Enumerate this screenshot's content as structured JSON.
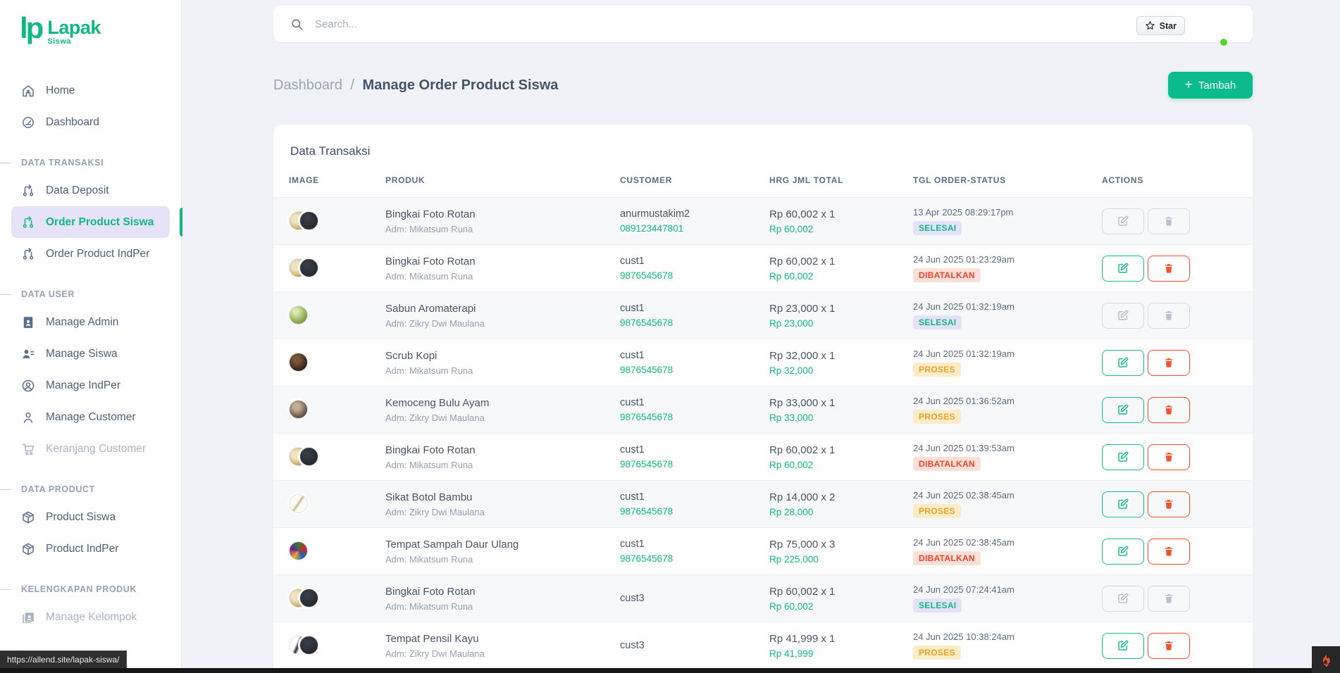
{
  "app": {
    "name": "Lapak",
    "sub": "Siswa"
  },
  "theme": {
    "accent_green": "#10b981",
    "active_item_bg": "#e6e3f9",
    "badge_selesai_bg": "#e4e1fb",
    "badge_selesai_text": "#10b981",
    "badge_dibatalkan_bg": "#fde0d7",
    "badge_dibatalkan_text": "#f1432e",
    "badge_proses_bg": "#fdecc8",
    "badge_proses_text": "#efa32a",
    "delete_red": "#f4502c",
    "status_dot_green": "#55d32a",
    "page_bg": "#f1f2f7"
  },
  "topbar": {
    "search_placeholder": "Search...",
    "star_label": "Star"
  },
  "breadcrumb": {
    "parent": "Dashboard",
    "separator": "/",
    "current": "Manage Order Product Siswa"
  },
  "add_button": {
    "label": "Tambah",
    "plus": "+"
  },
  "sidebar": {
    "groups": [
      {
        "title": null,
        "items": [
          {
            "label": "Home",
            "icon": "home-icon"
          },
          {
            "label": "Dashboard",
            "icon": "gauge-icon"
          }
        ]
      },
      {
        "title": "DATA TRANSAKSI",
        "items": [
          {
            "label": "Data Deposit",
            "icon": "branch-icon"
          },
          {
            "label": "Order Product Siswa",
            "icon": "branch-icon",
            "active": true
          },
          {
            "label": "Order Product IndPer",
            "icon": "branch-icon"
          }
        ]
      },
      {
        "title": "DATA USER",
        "items": [
          {
            "label": "Manage Admin",
            "icon": "id-card-icon"
          },
          {
            "label": "Manage Siswa",
            "icon": "users-icon"
          },
          {
            "label": "Manage IndPer",
            "icon": "user-circle-icon"
          },
          {
            "label": "Manage Customer",
            "icon": "user-icon"
          },
          {
            "label": "Keranjang Customer",
            "icon": "cart-icon",
            "muted": true
          }
        ]
      },
      {
        "title": "DATA PRODUCT",
        "items": [
          {
            "label": "Product Siswa",
            "icon": "box-icon"
          },
          {
            "label": "Product IndPer",
            "icon": "box-icon"
          }
        ]
      },
      {
        "title": "KELENGKAPAN PRODUK",
        "items": [
          {
            "label": "Manage Kelompok",
            "icon": "images-icon",
            "muted": true
          }
        ]
      }
    ]
  },
  "card": {
    "title": "Data Transaksi"
  },
  "table": {
    "headers": [
      "IMAGE",
      "PRODUK",
      "CUSTOMER",
      "HRG JML TOTAL",
      "TGL ORDER-STATUS",
      "ACTIONS"
    ],
    "rows": [
      {
        "product": "Bingkai Foto Rotan",
        "admin": "Adm: Mikatsum Runa",
        "customer": "anurmustakim2",
        "phone": "089123447801",
        "price": "Rp 60,002 x 1",
        "total": "Rp 60,002",
        "date": "13 Apr 2025 08:29:17pm",
        "status": "SELESAI",
        "status_type": "selesai",
        "actions_enabled": false,
        "thumb": {
          "type": "double",
          "badge": "+1",
          "styles": [
            "radial-gradient(circle at 35% 40%, #f0e3c2 25%, #c9a158 70%, #a87f3a)",
            "radial-gradient(circle at 40% 35%, #3a4048, #1e2228)"
          ]
        }
      },
      {
        "product": "Bingkai Foto Rotan",
        "admin": "Adm: Mikatsum Runa",
        "customer": "cust1",
        "phone": "9876545678",
        "price": "Rp 60,002 x 1",
        "total": "Rp 60,002",
        "date": "24 Jun 2025 01:23:29am",
        "status": "DIBATALKAN",
        "status_type": "dibatalkan",
        "actions_enabled": true,
        "thumb": {
          "type": "double",
          "badge": "+1",
          "styles": [
            "radial-gradient(circle at 35% 40%, #f0e3c2 25%, #c9a158 70%, #a87f3a)",
            "radial-gradient(circle at 40% 35%, #3a4048, #1e2228)"
          ]
        }
      },
      {
        "product": "Sabun Aromaterapi",
        "admin": "Adm: Zikry Dwi Maulana",
        "customer": "cust1",
        "phone": "9876545678",
        "price": "Rp 23,000 x 1",
        "total": "Rp 23,000",
        "date": "24 Jun 2025 01:32:19am",
        "status": "SELESAI",
        "status_type": "selesai",
        "actions_enabled": false,
        "thumb": {
          "type": "single",
          "badge": null,
          "styles": [
            "radial-gradient(circle at 35% 30%, #dbe7b4 15%, #8fae52 60%, #5d7a2e)"
          ]
        }
      },
      {
        "product": "Scrub Kopi",
        "admin": "Adm: Mikatsum Runa",
        "customer": "cust1",
        "phone": "9876545678",
        "price": "Rp 32,000 x 1",
        "total": "Rp 32,000",
        "date": "24 Jun 2025 01:32:19am",
        "status": "PROSES",
        "status_type": "proses",
        "actions_enabled": true,
        "thumb": {
          "type": "single",
          "badge": null,
          "styles": [
            "radial-gradient(circle at 40% 35%, #7a5538 20%, #33211a 70%, #1c110c)"
          ]
        }
      },
      {
        "product": "Kemoceng Bulu Ayam",
        "admin": "Adm: Zikry Dwi Maulana",
        "customer": "cust1",
        "phone": "9876545678",
        "price": "Rp 33,000 x 1",
        "total": "Rp 33,000",
        "date": "24 Jun 2025 01:36:52am",
        "status": "PROSES",
        "status_type": "proses",
        "actions_enabled": true,
        "thumb": {
          "type": "single",
          "badge": null,
          "styles": [
            "radial-gradient(circle at 40% 35%, #c4ad95 20%, #6d5846 65%, #3c2d22)"
          ]
        }
      },
      {
        "product": "Bingkai Foto Rotan",
        "admin": "Adm: Mikatsum Runa",
        "customer": "cust1",
        "phone": "9876545678",
        "price": "Rp 60,002 x 1",
        "total": "Rp 60,002",
        "date": "24 Jun 2025 01:39:53am",
        "status": "DIBATALKAN",
        "status_type": "dibatalkan",
        "actions_enabled": true,
        "thumb": {
          "type": "double",
          "badge": "+1",
          "styles": [
            "radial-gradient(circle at 35% 40%, #f0e3c2 25%, #c9a158 70%, #a87f3a)",
            "radial-gradient(circle at 40% 35%, #3a4048, #1e2228)"
          ]
        }
      },
      {
        "product": "Sikat Botol Bambu",
        "admin": "Adm: Zikry Dwi Maulana",
        "customer": "cust1",
        "phone": "9876545678",
        "price": "Rp 14,000 x 2",
        "total": "Rp 28,000",
        "date": "24 Jun 2025 02:38:45am",
        "status": "PROSES",
        "status_type": "proses",
        "actions_enabled": true,
        "thumb": {
          "type": "single",
          "badge": null,
          "styles": [
            "linear-gradient(125deg, #fbfaf6 42%, #cbb285 50%, #fbfaf6 58%)"
          ]
        }
      },
      {
        "product": "Tempat Sampah Daur Ulang",
        "admin": "Adm: Mikatsum Runa",
        "customer": "cust1",
        "phone": "9876545678",
        "price": "Rp 75,000 x 3",
        "total": "Rp 225,000",
        "date": "24 Jun 2025 02:38:45am",
        "status": "DIBATALKAN",
        "status_type": "dibatalkan",
        "actions_enabled": true,
        "thumb": {
          "type": "single",
          "badge": null,
          "styles": [
            "conic-gradient(#2e7d32, #c62828, #1565c0, #f9a825, #6a1b9a, #2e7d32)"
          ]
        }
      },
      {
        "product": "Bingkai Foto Rotan",
        "admin": "Adm: Mikatsum Runa",
        "customer": "cust3",
        "phone": null,
        "price": "Rp 60,002 x 1",
        "total": "Rp 60,002",
        "date": "24 Jun 2025 07:24:41am",
        "status": "SELESAI",
        "status_type": "selesai",
        "actions_enabled": false,
        "thumb": {
          "type": "double",
          "badge": "+1",
          "styles": [
            "radial-gradient(circle at 35% 40%, #f0e3c2 25%, #c9a158 70%, #a87f3a)",
            "radial-gradient(circle at 40% 35%, #3a4048, #1e2228)"
          ]
        }
      },
      {
        "product": "Tempat Pensil Kayu",
        "admin": "Adm: Zikry Dwi Maulana",
        "customer": "cust3",
        "phone": null,
        "price": "Rp 41,999 x 1",
        "total": "Rp 41,999",
        "date": "24 Jun 2025 10:38:24am",
        "status": "PROSES",
        "status_type": "proses",
        "actions_enabled": true,
        "thumb": {
          "type": "double",
          "badge": "+1",
          "styles": [
            "linear-gradient(115deg, #ffffff 38%, #2b2b2b 50%, #ffffff 62%)",
            "radial-gradient(circle at 40% 35%, #3a4048, #1e2228)"
          ]
        }
      }
    ]
  },
  "statusbar": {
    "url": "https://allend.site/lapak-siswa/"
  }
}
